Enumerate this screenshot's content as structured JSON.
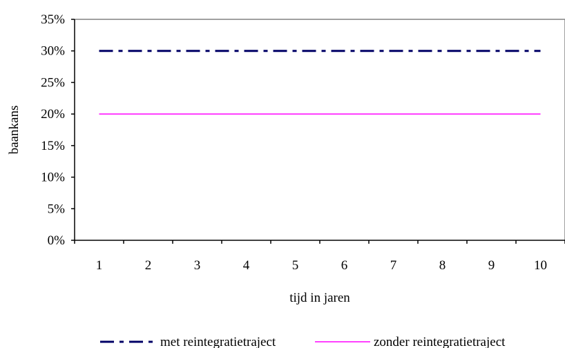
{
  "chart_data": {
    "type": "line",
    "title": "",
    "xlabel": "tijd in jaren",
    "ylabel": "baankans",
    "categories": [
      "1",
      "2",
      "3",
      "4",
      "5",
      "6",
      "7",
      "8",
      "9",
      "10"
    ],
    "y_tick_labels": [
      "0%",
      "5%",
      "10%",
      "15%",
      "20%",
      "25%",
      "30%",
      "35%"
    ],
    "ylim": [
      0,
      35
    ],
    "y_unit": "%",
    "grid": false,
    "legend_position": "bottom",
    "series": [
      {
        "name": "met reintegratietraject",
        "values": [
          30,
          30,
          30,
          30,
          30,
          30,
          30,
          30,
          30,
          30
        ],
        "color": "#000066",
        "style": "dash-dot"
      },
      {
        "name": "zonder reintegratietraject",
        "values": [
          20,
          20,
          20,
          20,
          20,
          20,
          20,
          20,
          20,
          20
        ],
        "color": "#ff00ff",
        "style": "solid"
      }
    ]
  }
}
